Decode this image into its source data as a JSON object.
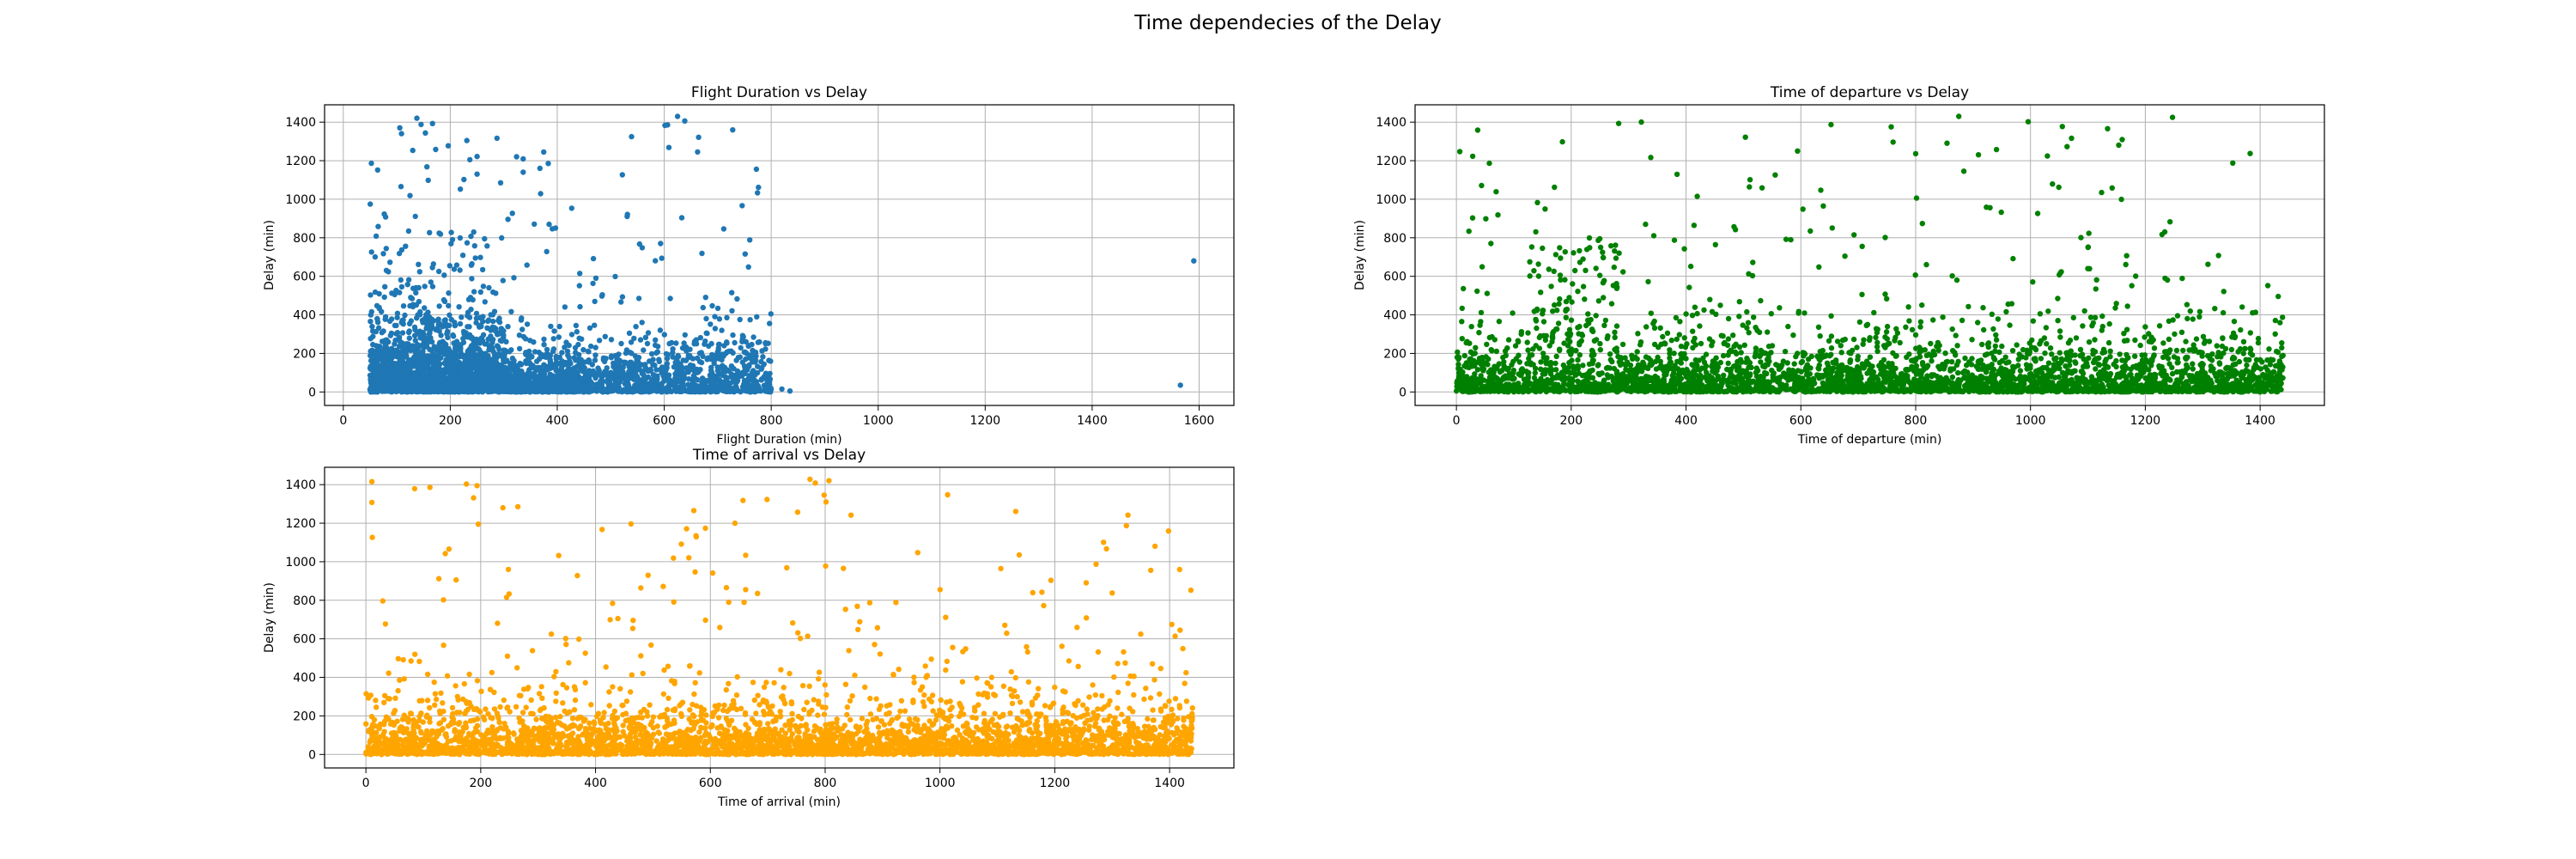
{
  "figure": {
    "title": "Time dependecies of the Delay"
  },
  "chart_data": [
    {
      "type": "scatter",
      "title": "Flight Duration vs Delay",
      "xlabel": "Flight Duration (min)",
      "ylabel": "Delay (min)",
      "xlim": [
        -35,
        1665
      ],
      "ylim": [
        -70,
        1490
      ],
      "xticks": [
        0,
        200,
        400,
        600,
        800,
        1000,
        1200,
        1400,
        1600
      ],
      "yticks": [
        0,
        200,
        400,
        600,
        800,
        1000,
        1200,
        1400
      ],
      "grid": true,
      "color": "#1f77b4",
      "clusters": [
        {
          "xmin": 50,
          "xmax": 300,
          "density": "high",
          "ymax_typical": 600,
          "ymax": 1430
        },
        {
          "xmin": 300,
          "xmax": 460,
          "density": "medium",
          "ymax_typical": 300,
          "ymax": 1260
        },
        {
          "xmin": 460,
          "xmax": 800,
          "density": "medium",
          "ymax_typical": 450,
          "ymax": 1430
        }
      ],
      "outliers": [
        {
          "x": 820,
          "y": 15
        },
        {
          "x": 835,
          "y": 5
        },
        {
          "x": 1565,
          "y": 35
        },
        {
          "x": 1590,
          "y": 680
        },
        {
          "x": 728,
          "y": 1360
        },
        {
          "x": 625,
          "y": 1430
        }
      ]
    },
    {
      "type": "scatter",
      "title": "Time of departure vs Delay",
      "xlabel": "Time of departure (min)",
      "ylabel": "Delay (min)",
      "xlim": [
        -72,
        1512
      ],
      "ylim": [
        -70,
        1490
      ],
      "xticks": [
        0,
        200,
        400,
        600,
        800,
        1000,
        1200,
        1400
      ],
      "yticks": [
        0,
        200,
        400,
        600,
        800,
        1000,
        1200,
        1400
      ],
      "grid": true,
      "color": "#008000",
      "range_x": [
        0,
        1440
      ],
      "range_y": [
        0,
        1430
      ],
      "notable_band": {
        "xmin": 130,
        "xmax": 280,
        "ymax_typical": 800
      }
    },
    {
      "type": "scatter",
      "title": "Time of arrival vs Delay",
      "xlabel": "Time of arrival (min)",
      "ylabel": "Delay (min)",
      "xlim": [
        -72,
        1512
      ],
      "ylim": [
        -70,
        1490
      ],
      "xticks": [
        0,
        200,
        400,
        600,
        800,
        1000,
        1200,
        1400
      ],
      "yticks": [
        0,
        200,
        400,
        600,
        800,
        1000,
        1200,
        1400
      ],
      "grid": true,
      "color": "#ffa500",
      "range_x": [
        0,
        1440
      ],
      "range_y": [
        0,
        1430
      ]
    }
  ]
}
